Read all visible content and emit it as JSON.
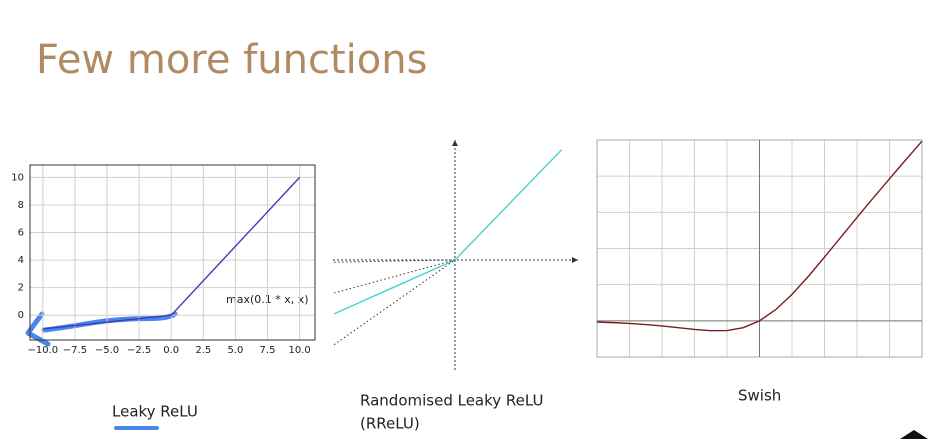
{
  "title": "Few more functions",
  "chart_data": [
    {
      "type": "line",
      "caption": "Leaky ReLU",
      "annotation": "max(0.1 * x, x)",
      "x": [
        -10,
        0,
        10
      ],
      "series": [
        {
          "color": "#3d3db8",
          "values": [
            -1,
            0,
            10
          ]
        }
      ],
      "xlim": [
        -11,
        11.2
      ],
      "ylim": [
        -1.8,
        10.9
      ],
      "xticks": [
        {
          "value": -10,
          "label": "−10.0"
        },
        {
          "value": -7.5,
          "label": "−7.5"
        },
        {
          "value": -5,
          "label": "−5.0"
        },
        {
          "value": -2.5,
          "label": "−2.5"
        },
        {
          "value": 0,
          "label": "0.0"
        },
        {
          "value": 2.5,
          "label": "2.5"
        },
        {
          "value": 5,
          "label": "5.0"
        },
        {
          "value": 7.5,
          "label": "7.5"
        },
        {
          "value": 10,
          "label": "10.0"
        }
      ],
      "yticks": [
        0,
        2,
        4,
        6,
        8,
        10
      ],
      "grid": true,
      "frame": true
    },
    {
      "type": "line",
      "caption": [
        "Randomised Leaky ReLU",
        "(RReLU)"
      ],
      "x": [
        -1.1,
        0,
        0.97
      ],
      "series": [
        {
          "color": "#45d2d2",
          "style": "solid",
          "values": [
            -0.49,
            0,
            1.0
          ]
        },
        {
          "color": "#333333",
          "style": "dotted",
          "values": [
            -0.02,
            0,
            null
          ]
        },
        {
          "color": "#333333",
          "style": "dotted",
          "values": [
            -0.3,
            0,
            null
          ]
        },
        {
          "color": "#333333",
          "style": "dotted",
          "values": [
            -0.77,
            0,
            null
          ]
        }
      ],
      "xlim": [
        -1.11,
        1.12
      ],
      "ylim": [
        -1.0,
        1.09
      ],
      "arrow_axes": true
    },
    {
      "type": "line",
      "caption": "Swish",
      "x": [
        -5,
        -4.5,
        -4,
        -3.5,
        -3,
        -2.5,
        -2,
        -1.5,
        -1,
        -0.5,
        0,
        0.5,
        1,
        1.5,
        2,
        2.5,
        3,
        3.5,
        4,
        4.5,
        5
      ],
      "series": [
        {
          "color": "#7a1f1f",
          "values": [
            -0.0335,
            -0.0494,
            -0.0719,
            -0.1026,
            -0.1423,
            -0.1896,
            -0.2384,
            -0.2736,
            -0.2689,
            -0.1888,
            0,
            0.3112,
            0.7311,
            1.2264,
            1.7616,
            2.3104,
            2.8577,
            3.3974,
            3.9281,
            4.4506,
            4.9665
          ]
        }
      ],
      "xlim": [
        -5,
        5
      ],
      "ylim": [
        -1,
        5
      ],
      "xticks": [
        -5,
        -4,
        -3,
        -2,
        -1,
        0,
        1,
        2,
        3,
        4,
        5
      ],
      "yticks": [
        -1,
        0,
        1,
        2,
        3,
        4,
        5
      ],
      "grid": true,
      "frame": true,
      "zero_axes": true,
      "tick_labels": false
    }
  ]
}
